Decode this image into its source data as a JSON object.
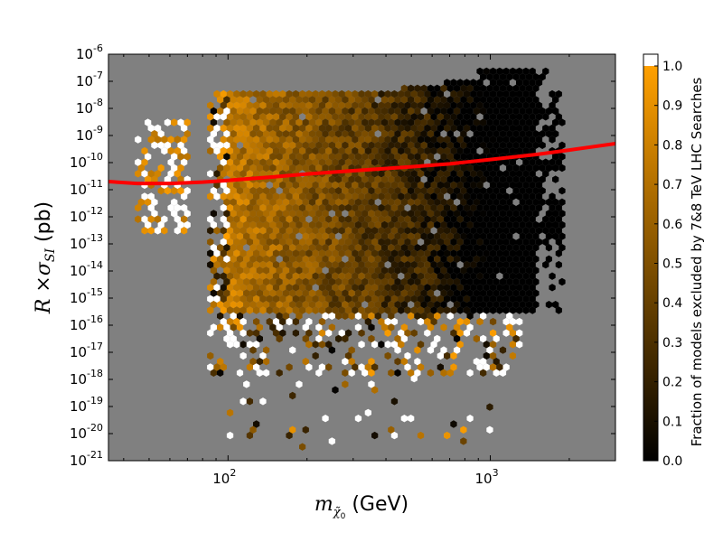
{
  "chart_data": {
    "type": "heatmap",
    "title": "",
    "xlabel_base": "m",
    "xlabel_sub": "χ̃",
    "xlabel_subsub": "0",
    "xlabel_unit": "(GeV)",
    "ylabel_main": "R ×σ",
    "ylabel_sub": "SI",
    "ylabel_unit": "(pb)",
    "x_scale": "log",
    "y_scale": "log",
    "xlim": [
      35,
      3000
    ],
    "ylim": [
      1e-21,
      1e-06
    ],
    "x_ticks": [
      {
        "value": 100,
        "base": "10",
        "exp": "2"
      },
      {
        "value": 1000,
        "base": "10",
        "exp": "3"
      }
    ],
    "y_ticks": [
      {
        "value": 1e-06,
        "base": "10",
        "exp": "-6"
      },
      {
        "value": 1e-07,
        "base": "10",
        "exp": "-7"
      },
      {
        "value": 1e-08,
        "base": "10",
        "exp": "-8"
      },
      {
        "value": 1e-09,
        "base": "10",
        "exp": "-9"
      },
      {
        "value": 1e-10,
        "base": "10",
        "exp": "-10"
      },
      {
        "value": 1e-11,
        "base": "10",
        "exp": "-11"
      },
      {
        "value": 1e-12,
        "base": "10",
        "exp": "-12"
      },
      {
        "value": 1e-13,
        "base": "10",
        "exp": "-13"
      },
      {
        "value": 1e-14,
        "base": "10",
        "exp": "-14"
      },
      {
        "value": 1e-15,
        "base": "10",
        "exp": "-15"
      },
      {
        "value": 1e-16,
        "base": "10",
        "exp": "-16"
      },
      {
        "value": 1e-17,
        "base": "10",
        "exp": "-17"
      },
      {
        "value": 1e-18,
        "base": "10",
        "exp": "-18"
      },
      {
        "value": 1e-19,
        "base": "10",
        "exp": "-19"
      },
      {
        "value": 1e-20,
        "base": "10",
        "exp": "-20"
      },
      {
        "value": 1e-21,
        "base": "10",
        "exp": "-21"
      }
    ],
    "background_color": "#808080",
    "colorbar": {
      "label": "Fraction of models excluded by 7&8 TeV LHC Searches",
      "range": [
        0.0,
        1.0
      ],
      "ticks": [
        "0.0",
        "0.1",
        "0.2",
        "0.3",
        "0.4",
        "0.5",
        "0.6",
        "0.7",
        "0.8",
        "0.9",
        "1.0"
      ],
      "colors": [
        "#000000",
        "#ffa000"
      ],
      "over_color": "#ffffff"
    },
    "limit_curve": {
      "color": "#ff0000",
      "x": [
        35,
        45,
        60,
        80,
        100,
        150,
        200,
        300,
        500,
        700,
        1000,
        1500,
        2000,
        3000
      ],
      "y": [
        2e-11,
        1.7e-11,
        1.7e-11,
        1.9e-11,
        2.2e-11,
        3e-11,
        3.8e-11,
        5e-11,
        7e-11,
        9e-11,
        1.3e-10,
        2e-10,
        2.9e-10,
        5e-10
      ]
    },
    "density_regions": [
      {
        "name": "low-mass-island",
        "xmin": 45,
        "xmax": 70,
        "ylo_exp": -12.5,
        "yhi_exp": -8.5,
        "frac": 0.95
      },
      {
        "name": "main-band",
        "xmin": 85,
        "xmax": 1900,
        "yhi_exp": -7.5,
        "ylo_exp": -17.5
      }
    ]
  }
}
